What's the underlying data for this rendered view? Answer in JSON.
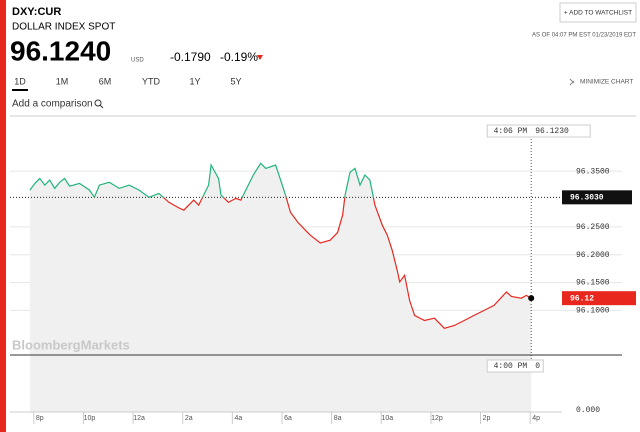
{
  "header": {
    "ticker": "DXY:CUR",
    "name": "DOLLAR INDEX SPOT",
    "price": "96.1240",
    "currency": "USD",
    "change": "-0.1790",
    "change_pct": "-0.19%",
    "watchlist_button": "+ ADD TO WATCHLIST",
    "as_of": "AS OF 04:07 PM EST 01/23/2019 EDT"
  },
  "tabs": [
    "1D",
    "1M",
    "6M",
    "YTD",
    "1Y",
    "5Y"
  ],
  "minimize": "MINIMIZE CHART",
  "comparison_placeholder": "Add a comparison",
  "watermark": "BloombergMarkets",
  "crosshair": {
    "time": "4:06 PM",
    "value": "96.1230",
    "volume_time": "4:00 PM",
    "volume": "0"
  },
  "volume_axis_label": "0.000",
  "chart_data": {
    "type": "line",
    "x": [
      19.6,
      19.8,
      20,
      20.2,
      20.4,
      20.6,
      20.8,
      21.0,
      21.2,
      21.6,
      22.0,
      22.2,
      22.4,
      22.8,
      23.2,
      23.6,
      24.0,
      24.4,
      24.8,
      25.2,
      25.6,
      25.8,
      26.2,
      26.4,
      26.8,
      26.9,
      27.2,
      27.3,
      27.6,
      27.9,
      28.1,
      28.4,
      28.6,
      28.9,
      29.1,
      29.5,
      29.7,
      29.9,
      30.1,
      30.4,
      30.7,
      30.9,
      31.3,
      31.7,
      32.0,
      32.2,
      32.3,
      32.5,
      32.7,
      32.9,
      33.1,
      33.3,
      33.5,
      33.8,
      34.0,
      34.2,
      34.4,
      34.5,
      34.7,
      34.9,
      35.1,
      35.5,
      35.9,
      36.3,
      36.7,
      37.1,
      37.5,
      37.9,
      38.3,
      38.8,
      39.0,
      39.4,
      39.6,
      39.8
    ],
    "series": [
      {
        "color_above": "#1fb57a",
        "color_below": "#e8271f",
        "values": [
          96.316,
          96.328,
          96.337,
          96.325,
          96.334,
          96.319,
          96.33,
          96.337,
          96.323,
          96.328,
          96.316,
          96.303,
          96.325,
          96.33,
          96.319,
          96.325,
          96.316,
          96.303,
          96.31,
          96.294,
          96.284,
          96.28,
          96.298,
          96.289,
          96.325,
          96.361,
          96.337,
          96.307,
          96.294,
          96.301,
          96.298,
          96.325,
          96.343,
          96.364,
          96.355,
          96.361,
          96.334,
          96.307,
          96.276,
          96.258,
          96.244,
          96.235,
          96.221,
          96.226,
          96.24,
          96.271,
          96.307,
          96.348,
          96.355,
          96.325,
          96.343,
          96.334,
          96.289,
          96.253,
          96.235,
          96.208,
          96.172,
          96.151,
          96.163,
          96.118,
          96.091,
          96.082,
          96.086,
          96.068,
          96.073,
          96.082,
          96.091,
          96.1,
          96.109,
          96.133,
          96.125,
          96.122,
          96.127,
          96.122
        ]
      }
    ],
    "reference": {
      "value": 96.303,
      "label": "96.3030"
    },
    "last_label": "96.12",
    "ylim": [
      96.02,
      96.44
    ],
    "yticks": [
      {
        "value": 96.1,
        "label": "96.1000"
      },
      {
        "value": 96.15,
        "label": "96.1500"
      },
      {
        "value": 96.2,
        "label": "96.2000"
      },
      {
        "value": 96.25,
        "label": "96.2500"
      },
      {
        "value": 96.35,
        "label": "96.3500"
      }
    ],
    "xlim": [
      19,
      41
    ],
    "xticks": [
      {
        "value": 20,
        "label": "8p"
      },
      {
        "value": 22,
        "label": "10p"
      },
      {
        "value": 24,
        "label": "12a"
      },
      {
        "value": 26,
        "label": "2a"
      },
      {
        "value": 28,
        "label": "4a"
      },
      {
        "value": 30,
        "label": "6a"
      },
      {
        "value": 32,
        "label": "8a"
      },
      {
        "value": 34,
        "label": "10a"
      },
      {
        "value": 36,
        "label": "12p"
      },
      {
        "value": 38,
        "label": "2p"
      },
      {
        "value": 40,
        "label": "4p"
      }
    ],
    "grid": true
  }
}
